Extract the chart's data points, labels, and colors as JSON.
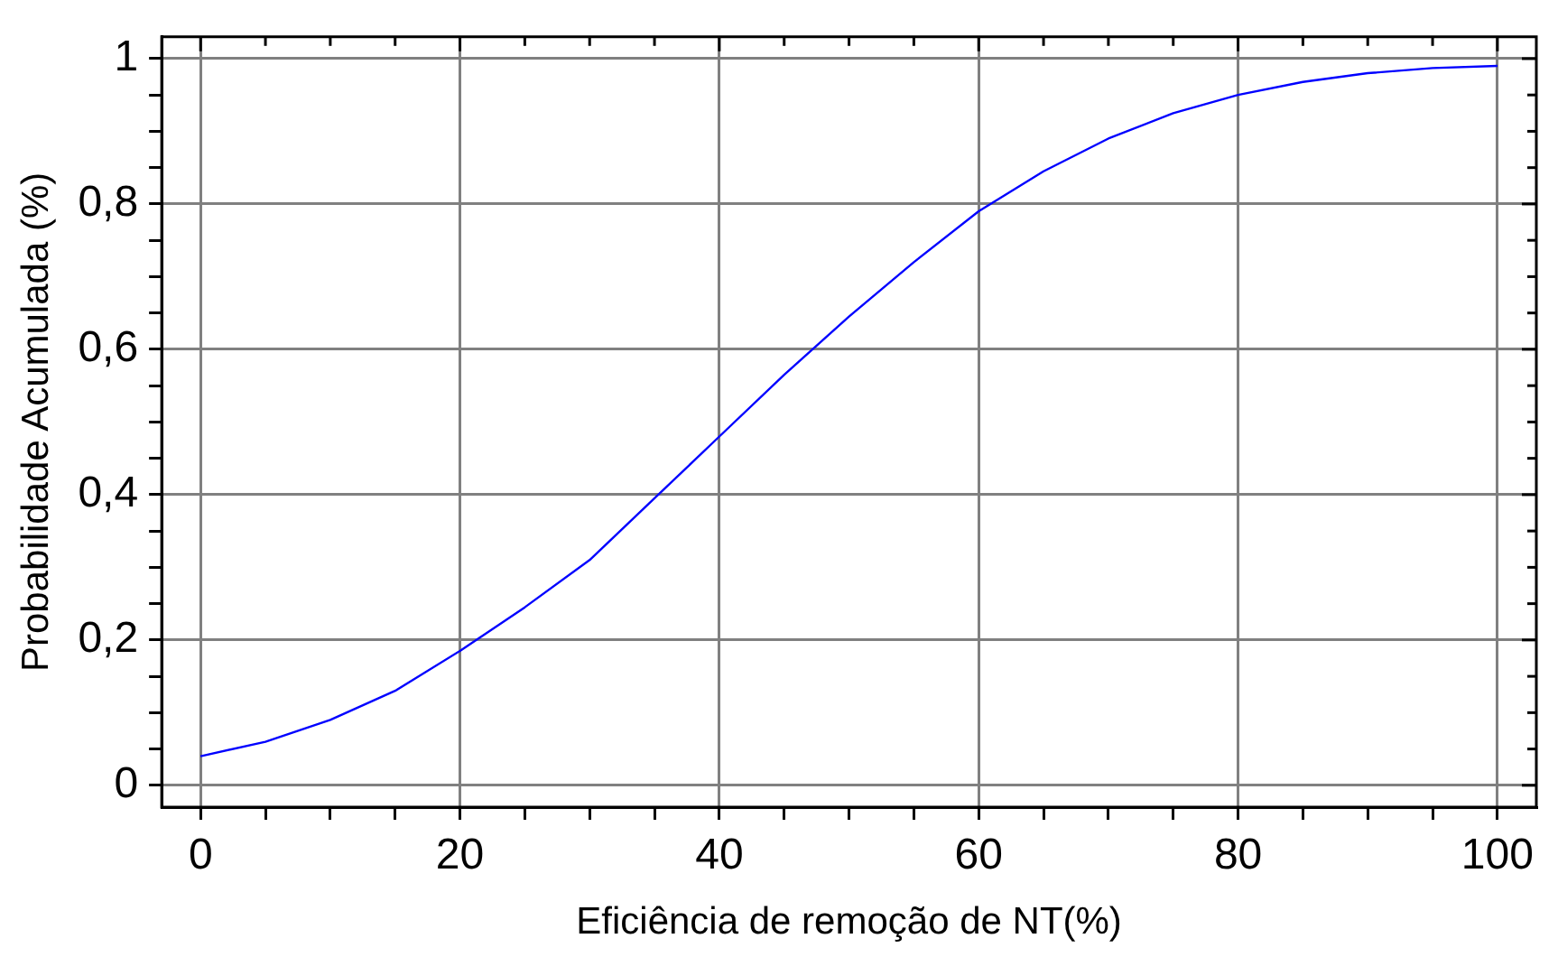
{
  "chart_data": {
    "type": "line",
    "xlabel": "Eficiência de remoção de NT(%)",
    "ylabel": "Probabilidade Acumulada (%)",
    "x": [
      0,
      5,
      10,
      15,
      20,
      25,
      30,
      35,
      40,
      45,
      50,
      55,
      60,
      65,
      70,
      75,
      80,
      85,
      90,
      95,
      100
    ],
    "series": [
      {
        "color": "#0000ff",
        "values": [
          0.04,
          0.06,
          0.09,
          0.13,
          0.185,
          0.245,
          0.31,
          0.395,
          0.48,
          0.565,
          0.645,
          0.72,
          0.79,
          0.845,
          0.89,
          0.925,
          0.95,
          0.968,
          0.98,
          0.987,
          0.99
        ]
      }
    ],
    "xlim": [
      -3,
      103
    ],
    "ylim": [
      -0.03,
      1.03
    ],
    "xticks": [
      0,
      {
        "value": 5,
        "label": null
      },
      {
        "value": 10,
        "label": null
      },
      {
        "value": 15,
        "label": null
      },
      20,
      {
        "value": 25,
        "label": null
      },
      {
        "value": 30,
        "label": null
      },
      {
        "value": 35,
        "label": null
      },
      40,
      {
        "value": 45,
        "label": null
      },
      {
        "value": 50,
        "label": null
      },
      {
        "value": 55,
        "label": null
      },
      60,
      {
        "value": 65,
        "label": null
      },
      {
        "value": 70,
        "label": null
      },
      {
        "value": 75,
        "label": null
      },
      80,
      {
        "value": 85,
        "label": null
      },
      {
        "value": 90,
        "label": null
      },
      {
        "value": 95,
        "label": null
      },
      100
    ],
    "yticks": [
      0,
      {
        "value": 0.05,
        "label": null
      },
      {
        "value": 0.1,
        "label": null
      },
      {
        "value": 0.15,
        "label": null
      },
      {
        "value": 0.2,
        "label": "0,2"
      },
      {
        "value": 0.25,
        "label": null
      },
      {
        "value": 0.3,
        "label": null
      },
      {
        "value": 0.35,
        "label": null
      },
      {
        "value": 0.4,
        "label": "0,4"
      },
      {
        "value": 0.45,
        "label": null
      },
      {
        "value": 0.5,
        "label": null
      },
      {
        "value": 0.55,
        "label": null
      },
      {
        "value": 0.6,
        "label": "0,6"
      },
      {
        "value": 0.65,
        "label": null
      },
      {
        "value": 0.7,
        "label": null
      },
      {
        "value": 0.75,
        "label": null
      },
      {
        "value": 0.8,
        "label": "0,8"
      },
      {
        "value": 0.85,
        "label": null
      },
      {
        "value": 0.9,
        "label": null
      },
      {
        "value": 0.95,
        "label": null
      },
      1
    ],
    "grid": true,
    "legend": false,
    "marker": "none",
    "line_style": "solid"
  }
}
